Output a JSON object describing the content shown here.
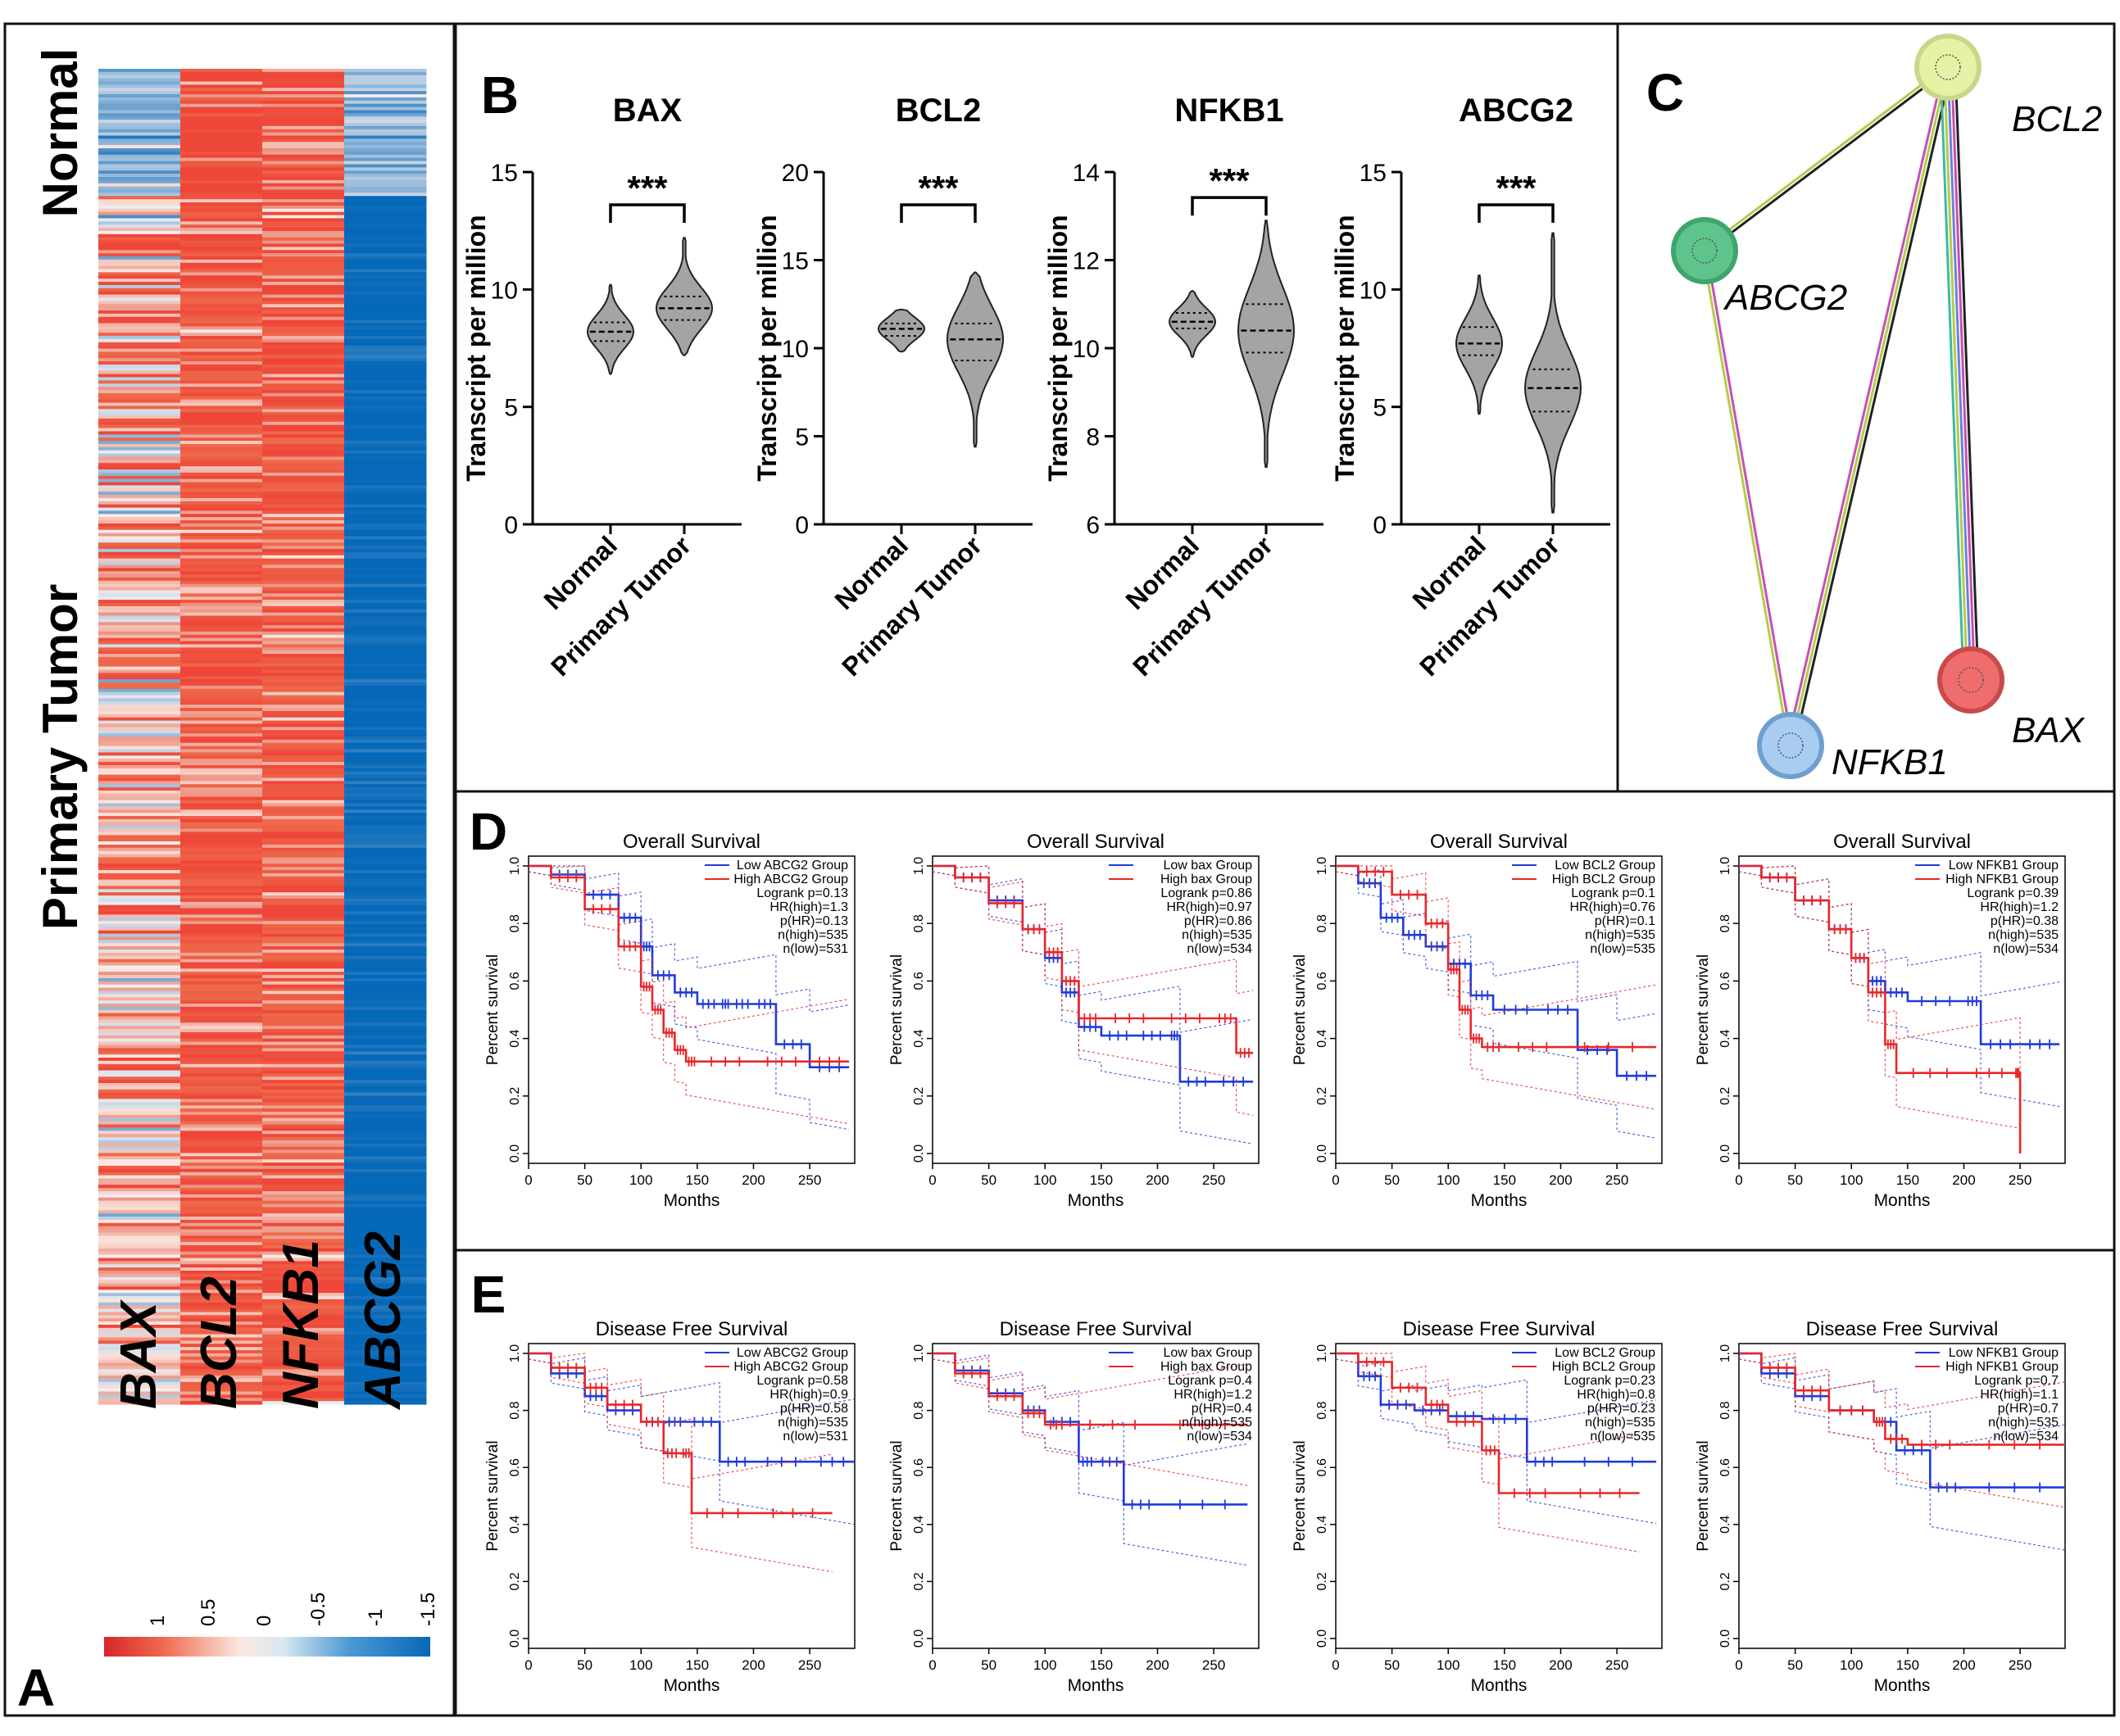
{
  "panels": {
    "a": {
      "letter": "A",
      "group_labels": [
        "Normal",
        "Primary Tumor"
      ],
      "gene_labels": [
        "BAX",
        "BCL2",
        "NFKB1",
        "ABCG2"
      ],
      "legend_ticks": [
        "1",
        "0.5",
        "0",
        "-0.5",
        "-1",
        "-1.5"
      ]
    },
    "b": {
      "letter": "B"
    },
    "c": {
      "letter": "C"
    },
    "d": {
      "letter": "D"
    },
    "e": {
      "letter": "E"
    }
  },
  "colors": {
    "red": "#e8272a",
    "blue": "#1f3bdb",
    "heat_red": "#ee6a4b",
    "heat_blue": "#0a73c2",
    "violin_fill": "#a4a4a4"
  },
  "chart_data": [
    {
      "id": "heatmap",
      "type": "heatmap",
      "title": "",
      "columns": [
        "BAX",
        "BCL2",
        "NFKB1",
        "ABCG2"
      ],
      "row_groups": [
        "Normal",
        "Primary Tumor"
      ],
      "group_fraction": [
        0.095,
        0.905
      ],
      "mean_z": {
        "Normal": [
          -0.7,
          1.0,
          0.8,
          -0.6
        ],
        "Primary Tumor": [
          0.25,
          0.7,
          0.7,
          -1.5
        ]
      },
      "colorbar": {
        "range": [
          1,
          -1.5
        ],
        "ticks": [
          "1",
          "0.5",
          "0",
          "-0.5",
          "-1",
          "-1.5"
        ]
      }
    },
    {
      "id": "violin-bax",
      "type": "violin",
      "title": "BAX",
      "categories": [
        "Normal",
        "Primary Tumor"
      ],
      "ylabel": "Transcript per million",
      "ylim": [
        0,
        15
      ],
      "yticks": [
        "0",
        "5",
        "10",
        "15"
      ],
      "significance": "***",
      "medians": [
        8.2,
        9.2
      ],
      "quartiles": [
        [
          7.8,
          8.6
        ],
        [
          8.7,
          9.7
        ]
      ],
      "ranges": [
        [
          6.4,
          10.2
        ],
        [
          7.2,
          12.2
        ]
      ]
    },
    {
      "id": "violin-bcl2",
      "type": "violin",
      "title": "BCL2",
      "categories": [
        "Normal",
        "Primary Tumor"
      ],
      "ylabel": "Transcript per million",
      "ylim": [
        0,
        20
      ],
      "yticks": [
        "0",
        "5",
        "10",
        "15",
        "20"
      ],
      "significance": "***",
      "medians": [
        11.1,
        10.5
      ],
      "quartiles": [
        [
          10.7,
          11.4
        ],
        [
          9.3,
          11.4
        ]
      ],
      "ranges": [
        [
          9.8,
          12.2
        ],
        [
          4.4,
          14.3
        ]
      ]
    },
    {
      "id": "violin-nfkb1",
      "type": "violin",
      "title": "NFKB1",
      "categories": [
        "Normal",
        "Primary Tumor"
      ],
      "ylabel": "Transcript per million",
      "ylim": [
        6,
        14
      ],
      "yticks": [
        "6",
        "8",
        "10",
        "12",
        "14"
      ],
      "significance": "***",
      "medians": [
        10.6,
        10.4
      ],
      "quartiles": [
        [
          10.45,
          10.8
        ],
        [
          9.9,
          11.0
        ]
      ],
      "ranges": [
        [
          9.8,
          11.3
        ],
        [
          7.3,
          12.9
        ]
      ]
    },
    {
      "id": "violin-abcg2",
      "type": "violin",
      "title": "ABCG2",
      "categories": [
        "Normal",
        "Primary Tumor"
      ],
      "ylabel": "Transcript per million",
      "ylim": [
        0,
        15
      ],
      "yticks": [
        "0",
        "5",
        "10",
        "15"
      ],
      "significance": "***",
      "medians": [
        7.7,
        5.8
      ],
      "quartiles": [
        [
          7.2,
          8.4
        ],
        [
          4.8,
          6.6
        ]
      ],
      "ranges": [
        [
          4.7,
          10.6
        ],
        [
          0.5,
          12.4
        ]
      ]
    },
    {
      "id": "network",
      "type": "network",
      "title": "",
      "nodes": [
        {
          "id": "BCL2",
          "label": "BCL2",
          "color": "#e7f2a6",
          "stroke": "#c9d78a"
        },
        {
          "id": "ABCG2",
          "label": "ABCG2",
          "color": "#5fc48c",
          "stroke": "#3fa56e"
        },
        {
          "id": "NFKB1",
          "label": "NFKB1",
          "color": "#a9cdf1",
          "stroke": "#6f9fcf"
        },
        {
          "id": "BAX",
          "label": "BAX",
          "color": "#ef6d6d",
          "stroke": "#c94a4a"
        }
      ],
      "edges": [
        {
          "source": "BCL2",
          "target": "ABCG2",
          "colors": [
            "#222222",
            "#b2cc4a"
          ]
        },
        {
          "source": "BCL2",
          "target": "NFKB1",
          "colors": [
            "#222222",
            "#b2cc4a",
            "#c84fb1"
          ]
        },
        {
          "source": "BCL2",
          "target": "BAX",
          "colors": [
            "#222222",
            "#c84fb1",
            "#6d7fe0",
            "#b2cc4a",
            "#3fb8a3"
          ]
        },
        {
          "source": "ABCG2",
          "target": "NFKB1",
          "colors": [
            "#c84fb1",
            "#b2cc4a"
          ]
        }
      ]
    },
    {
      "id": "os-abcg2",
      "type": "line",
      "title": "Overall Survival",
      "xlabel": "Months",
      "ylabel": "Percent survival",
      "xlim": [
        0,
        290
      ],
      "ylim": [
        0,
        1
      ],
      "xticks": [
        "0",
        "50",
        "100",
        "150",
        "200",
        "250"
      ],
      "yticks": [
        "0.0",
        "0.2",
        "0.4",
        "0.6",
        "0.8",
        "1.0"
      ],
      "legend": [
        "Low ABCG2 Group",
        "High ABCG2 Group"
      ],
      "stats": [
        "Logrank p=0.13",
        "HR(high)=1.3",
        "p(HR)=0.13",
        "n(high)=535",
        "n(low)=531"
      ],
      "series": [
        {
          "name": "Low ABCG2 Group",
          "color": "#1f3bdb",
          "x": [
            0,
            20,
            50,
            80,
            100,
            110,
            130,
            150,
            170,
            180,
            200,
            220,
            250,
            285
          ],
          "y": [
            1.0,
            0.97,
            0.9,
            0.82,
            0.72,
            0.62,
            0.56,
            0.52,
            0.52,
            0.52,
            0.52,
            0.38,
            0.3,
            0.3
          ]
        },
        {
          "name": "High ABCG2 Group",
          "color": "#e8272a",
          "x": [
            0,
            20,
            50,
            80,
            100,
            110,
            120,
            130,
            140,
            150,
            200,
            250,
            285
          ],
          "y": [
            1.0,
            0.96,
            0.85,
            0.72,
            0.58,
            0.5,
            0.42,
            0.36,
            0.32,
            0.32,
            0.32,
            0.32,
            0.32
          ]
        }
      ]
    },
    {
      "id": "os-bax",
      "type": "line",
      "title": "Overall Survival",
      "xlabel": "Months",
      "ylabel": "Percent survival",
      "xlim": [
        0,
        290
      ],
      "ylim": [
        0,
        1
      ],
      "xticks": [
        "0",
        "50",
        "100",
        "150",
        "200",
        "250"
      ],
      "yticks": [
        "0.0",
        "0.2",
        "0.4",
        "0.6",
        "0.8",
        "1.0"
      ],
      "legend": [
        "Low bax Group",
        "High bax Group"
      ],
      "stats": [
        "Logrank p=0.86",
        "HR(high)=0.97",
        "p(HR)=0.86",
        "n(high)=535",
        "n(low)=534"
      ],
      "series": [
        {
          "name": "Low bax Group",
          "color": "#1f3bdb",
          "x": [
            0,
            20,
            50,
            80,
            100,
            115,
            130,
            150,
            180,
            210,
            220,
            250,
            285
          ],
          "y": [
            1.0,
            0.96,
            0.88,
            0.78,
            0.68,
            0.56,
            0.44,
            0.41,
            0.41,
            0.41,
            0.25,
            0.25,
            0.25
          ]
        },
        {
          "name": "High bax Group",
          "color": "#e8272a",
          "x": [
            0,
            20,
            50,
            80,
            100,
            115,
            130,
            150,
            200,
            250,
            270,
            285
          ],
          "y": [
            1.0,
            0.96,
            0.87,
            0.78,
            0.7,
            0.6,
            0.47,
            0.47,
            0.47,
            0.47,
            0.35,
            0.35
          ]
        }
      ]
    },
    {
      "id": "os-bcl2",
      "type": "line",
      "title": "Overall Survival",
      "xlabel": "Months",
      "ylabel": "Percent survival",
      "xlim": [
        0,
        290
      ],
      "ylim": [
        0,
        1
      ],
      "xticks": [
        "0",
        "50",
        "100",
        "150",
        "200",
        "250"
      ],
      "yticks": [
        "0.0",
        "0.2",
        "0.4",
        "0.6",
        "0.8",
        "1.0"
      ],
      "legend": [
        "Low BCL2 Group",
        "High BCL2 Group"
      ],
      "stats": [
        "Logrank p=0.1",
        "HR(high)=0.76",
        "p(HR)=0.1",
        "n(high)=535",
        "n(low)=535"
      ],
      "series": [
        {
          "name": "Low BCL2 Group",
          "color": "#1f3bdb",
          "x": [
            0,
            20,
            40,
            60,
            80,
            100,
            120,
            140,
            180,
            215,
            250,
            285
          ],
          "y": [
            1.0,
            0.94,
            0.82,
            0.76,
            0.72,
            0.66,
            0.55,
            0.5,
            0.5,
            0.36,
            0.27,
            0.27
          ]
        },
        {
          "name": "High BCL2 Group",
          "color": "#e8272a",
          "x": [
            0,
            20,
            50,
            80,
            100,
            110,
            120,
            130,
            150,
            200,
            285
          ],
          "y": [
            1.0,
            0.98,
            0.9,
            0.8,
            0.64,
            0.5,
            0.4,
            0.37,
            0.37,
            0.37,
            0.37
          ]
        }
      ]
    },
    {
      "id": "os-nfkb1",
      "type": "line",
      "title": "Overall Survival",
      "xlabel": "Months",
      "ylabel": "Percent survival",
      "xlim": [
        0,
        290
      ],
      "ylim": [
        0,
        1
      ],
      "xticks": [
        "0",
        "50",
        "100",
        "150",
        "200",
        "250"
      ],
      "yticks": [
        "0.0",
        "0.2",
        "0.4",
        "0.6",
        "0.8",
        "1.0"
      ],
      "legend": [
        "Low NFKB1 Group",
        "High NFKB1 Group"
      ],
      "stats": [
        "Logrank p=0.39",
        "HR(high)=1.2",
        "p(HR)=0.38",
        "n(high)=535",
        "n(low)=534"
      ],
      "series": [
        {
          "name": "Low NFKB1 Group",
          "color": "#1f3bdb",
          "x": [
            0,
            20,
            50,
            80,
            100,
            115,
            130,
            150,
            200,
            215,
            250,
            285
          ],
          "y": [
            1.0,
            0.96,
            0.88,
            0.78,
            0.68,
            0.6,
            0.56,
            0.53,
            0.53,
            0.38,
            0.38,
            0.38
          ]
        },
        {
          "name": "High NFKB1 Group",
          "color": "#e8272a",
          "x": [
            0,
            20,
            50,
            80,
            100,
            115,
            130,
            140,
            200,
            245,
            250
          ],
          "y": [
            1.0,
            0.96,
            0.88,
            0.78,
            0.68,
            0.56,
            0.38,
            0.28,
            0.28,
            0.28,
            0.0
          ]
        }
      ]
    },
    {
      "id": "dfs-abcg2",
      "type": "line",
      "title": "Disease Free Survival",
      "xlabel": "Months",
      "ylabel": "Percent survival",
      "xlim": [
        0,
        290
      ],
      "ylim": [
        0,
        1
      ],
      "xticks": [
        "0",
        "50",
        "100",
        "150",
        "200",
        "250"
      ],
      "yticks": [
        "0.0",
        "0.2",
        "0.4",
        "0.6",
        "0.8",
        "1.0"
      ],
      "legend": [
        "Low ABCG2 Group",
        "High ABCG2 Group"
      ],
      "stats": [
        "Logrank p=0.58",
        "HR(high)=0.9",
        "p(HR)=0.58",
        "n(high)=535",
        "n(low)=531"
      ],
      "series": [
        {
          "name": "Low ABCG2 Group",
          "color": "#1f3bdb",
          "x": [
            0,
            20,
            50,
            70,
            100,
            120,
            140,
            170,
            200,
            250,
            290
          ],
          "y": [
            1.0,
            0.93,
            0.85,
            0.8,
            0.76,
            0.76,
            0.76,
            0.62,
            0.62,
            0.62,
            0.62
          ]
        },
        {
          "name": "High ABCG2 Group",
          "color": "#e8272a",
          "x": [
            0,
            20,
            50,
            70,
            100,
            120,
            135,
            145,
            200,
            270
          ],
          "y": [
            1.0,
            0.95,
            0.88,
            0.82,
            0.76,
            0.65,
            0.65,
            0.44,
            0.44,
            0.44
          ]
        }
      ]
    },
    {
      "id": "dfs-bax",
      "type": "line",
      "title": "Disease Free Survival",
      "xlabel": "Months",
      "ylabel": "Percent survival",
      "xlim": [
        0,
        290
      ],
      "ylim": [
        0,
        1
      ],
      "xticks": [
        "0",
        "50",
        "100",
        "150",
        "200",
        "250"
      ],
      "yticks": [
        "0.0",
        "0.2",
        "0.4",
        "0.6",
        "0.8",
        "1.0"
      ],
      "legend": [
        "Low bax Group",
        "High bax Group"
      ],
      "stats": [
        "Logrank p=0.4",
        "HR(high)=1.2",
        "p(HR)=0.4",
        "n(high)=535",
        "n(low)=534"
      ],
      "series": [
        {
          "name": "Low bax Group",
          "color": "#1f3bdb",
          "x": [
            0,
            20,
            50,
            80,
            100,
            130,
            145,
            170,
            200,
            280
          ],
          "y": [
            1.0,
            0.94,
            0.86,
            0.8,
            0.76,
            0.62,
            0.62,
            0.47,
            0.47,
            0.47
          ]
        },
        {
          "name": "High bax Group",
          "color": "#e8272a",
          "x": [
            0,
            20,
            50,
            80,
            100,
            120,
            200,
            280
          ],
          "y": [
            1.0,
            0.93,
            0.85,
            0.79,
            0.75,
            0.75,
            0.75,
            0.75
          ]
        }
      ]
    },
    {
      "id": "dfs-bcl2",
      "type": "line",
      "title": "Disease Free Survival",
      "xlabel": "Months",
      "ylabel": "Percent survival",
      "xlim": [
        0,
        290
      ],
      "ylim": [
        0,
        1
      ],
      "xticks": [
        "0",
        "50",
        "100",
        "150",
        "200",
        "250"
      ],
      "yticks": [
        "0.0",
        "0.2",
        "0.4",
        "0.6",
        "0.8",
        "1.0"
      ],
      "legend": [
        "Low BCL2 Group",
        "High BCL2 Group"
      ],
      "stats": [
        "Logrank p=0.23",
        "HR(high)=0.8",
        "p(HR)=0.23",
        "n(high)=535",
        "n(low)=535"
      ],
      "series": [
        {
          "name": "Low BCL2 Group",
          "color": "#1f3bdb",
          "x": [
            0,
            20,
            40,
            70,
            100,
            130,
            170,
            200,
            285
          ],
          "y": [
            1.0,
            0.92,
            0.82,
            0.8,
            0.78,
            0.77,
            0.62,
            0.62,
            0.62
          ]
        },
        {
          "name": "High BCL2 Group",
          "color": "#e8272a",
          "x": [
            0,
            20,
            50,
            80,
            100,
            130,
            145,
            200,
            270
          ],
          "y": [
            1.0,
            0.97,
            0.88,
            0.82,
            0.76,
            0.66,
            0.51,
            0.51,
            0.51
          ]
        }
      ]
    },
    {
      "id": "dfs-nfkb1",
      "type": "line",
      "title": "Disease Free Survival",
      "xlabel": "Months",
      "ylabel": "Percent survival",
      "xlim": [
        0,
        290
      ],
      "ylim": [
        0,
        1
      ],
      "xticks": [
        "0",
        "50",
        "100",
        "150",
        "200",
        "250"
      ],
      "yticks": [
        "0.0",
        "0.2",
        "0.4",
        "0.6",
        "0.8",
        "1.0"
      ],
      "legend": [
        "Low NFKB1 Group",
        "High NFKB1 Group"
      ],
      "stats": [
        "Logrank p=0.7",
        "HR(high)=1.1",
        "p(HR)=0.7",
        "n(high)=535",
        "n(low)=534"
      ],
      "series": [
        {
          "name": "Low NFKB1 Group",
          "color": "#1f3bdb",
          "x": [
            0,
            20,
            50,
            80,
            120,
            140,
            170,
            200,
            290
          ],
          "y": [
            1.0,
            0.93,
            0.85,
            0.8,
            0.76,
            0.66,
            0.53,
            0.53,
            0.53
          ]
        },
        {
          "name": "High NFKB1 Group",
          "color": "#e8272a",
          "x": [
            0,
            20,
            50,
            80,
            120,
            130,
            150,
            200,
            290
          ],
          "y": [
            1.0,
            0.95,
            0.87,
            0.8,
            0.76,
            0.7,
            0.68,
            0.68,
            0.68
          ]
        }
      ]
    }
  ]
}
